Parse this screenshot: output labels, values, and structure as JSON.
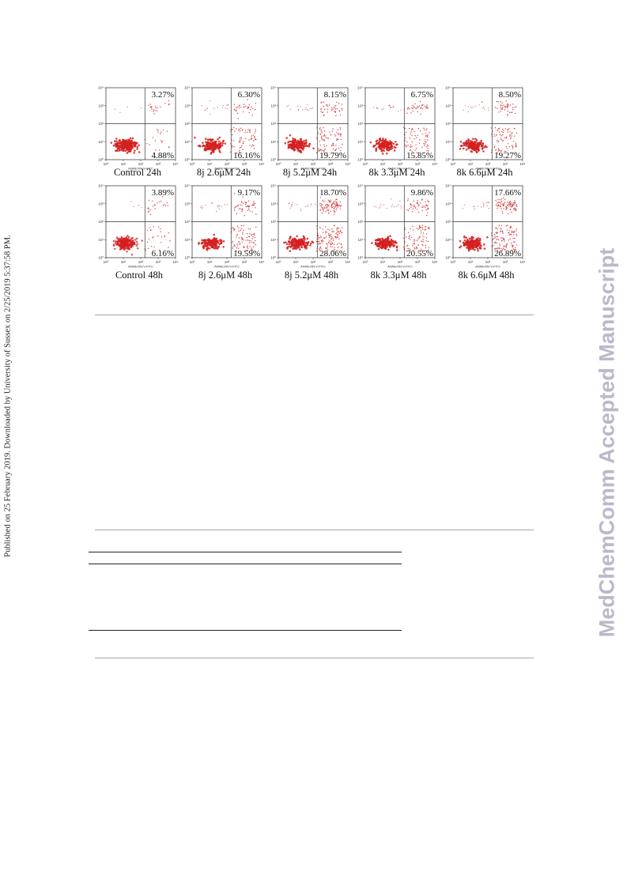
{
  "side_note": "Published on 25 February 2019. Downloaded by University of Sussex on 2/25/2019 5:37:58 PM.",
  "watermark": "MedChemComm Accepted Manuscript",
  "figure": {
    "x_axis_label": "ANNEXIN-V-FITC",
    "x_tick_labels": [
      "10⁰",
      "10¹",
      "10²",
      "10³",
      "10⁴"
    ],
    "y_tick_labels": [
      "10⁰",
      "10¹",
      "10²",
      "10³",
      "10⁴"
    ],
    "dot_color": "#d42020",
    "panels": [
      {
        "caption": "Control 24h",
        "upper_right": "3.27%",
        "lower_right": "4.88%"
      },
      {
        "caption": "8j 2.6μM 24h",
        "upper_right": "6.30%",
        "lower_right": "16.16%"
      },
      {
        "caption": "8j 5.2μM 24h",
        "upper_right": "8.15%",
        "lower_right": "19.79%"
      },
      {
        "caption": "8k 3.3μM 24h",
        "upper_right": "6.75%",
        "lower_right": "15.85%"
      },
      {
        "caption": "8k 6.6μM 24h",
        "upper_right": "8.50%",
        "lower_right": "19.27%"
      },
      {
        "caption": "Control 48h",
        "upper_right": "3.89%",
        "lower_right": "6.16%"
      },
      {
        "caption": "8j 2.6μM 48h",
        "upper_right": "9.17%",
        "lower_right": "19.59%"
      },
      {
        "caption": "8j 5.2μM 48h",
        "upper_right": "18.70%",
        "lower_right": "28.06%"
      },
      {
        "caption": "8k 3.3μM 48h",
        "upper_right": "9.86%",
        "lower_right": "20.55%"
      },
      {
        "caption": "8k 6.6μM 48h",
        "upper_right": "17.66%",
        "lower_right": "26.89%"
      }
    ]
  }
}
